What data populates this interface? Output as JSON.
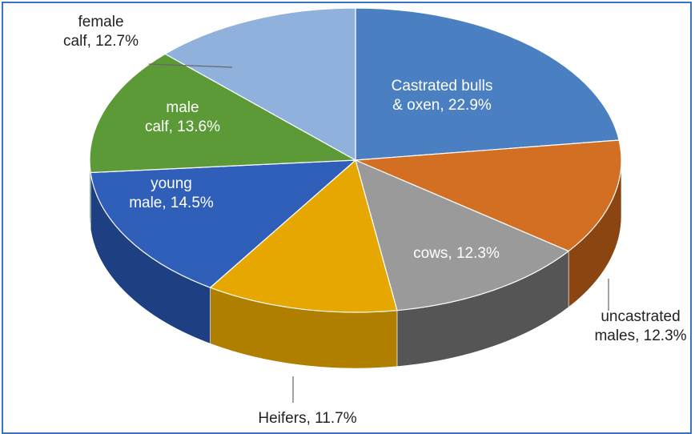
{
  "chart_data": {
    "type": "pie",
    "title": "",
    "three_d": true,
    "categories": [
      "Castrated bulls & oxen",
      "uncastrated males",
      "cows",
      "Heifers",
      "young male",
      "male calf",
      "female calf"
    ],
    "values": [
      22.9,
      12.3,
      12.3,
      11.7,
      14.5,
      13.6,
      12.7
    ],
    "unit": "%",
    "data_labels": [
      "Castrated bulls & oxen, 22.9%",
      "uncastrated males, 12.3%",
      "cows, 12.3%",
      "Heifers, 11.7%",
      "young male, 14.5%",
      "male calf, 13.6%",
      "female calf, 12.7%"
    ],
    "label_lines": [
      [
        "Castrated bulls",
        "& oxen, 22.9%"
      ],
      [
        "uncastrated",
        "males, 12.3%"
      ],
      [
        "cows, 12.3%"
      ],
      [
        "Heifers, 11.7%"
      ],
      [
        "young",
        "male, 14.5%"
      ],
      [
        "male",
        "calf, 13.6%"
      ],
      [
        "female",
        "calf, 12.7%"
      ]
    ],
    "label_placement": [
      "inside",
      "outside",
      "inside",
      "outside",
      "inside",
      "inside",
      "outside"
    ],
    "colors": [
      "#4a80c2",
      "#d36f22",
      "#9a9a9a",
      "#e6a800",
      "#2f5fb8",
      "#5c9a37",
      "#8fb1dc"
    ],
    "side_colors": [
      "#2f5a90",
      "#8a4511",
      "#555555",
      "#b07f00",
      "#1e3f82",
      "#3d6a22",
      "#6a8ab5"
    ],
    "legend": "none"
  }
}
